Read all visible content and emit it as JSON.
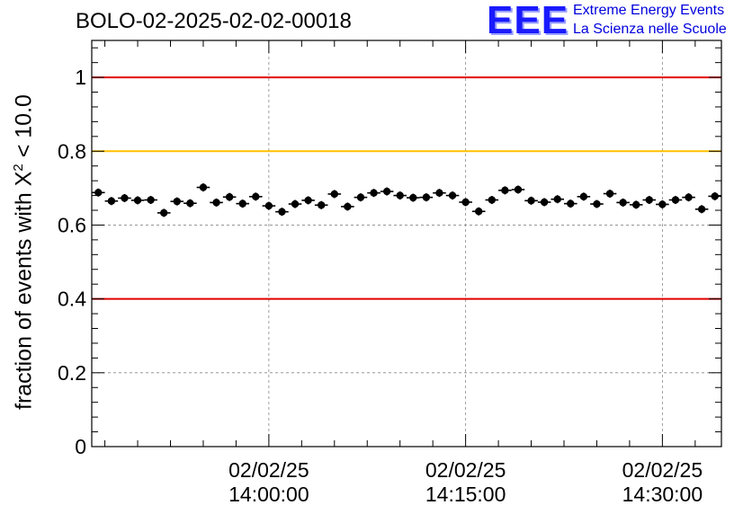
{
  "header": {
    "title": "BOLO-02-2025-02-02-00018"
  },
  "logo": {
    "mark": "EEE",
    "line1": "Extreme Energy Events",
    "line2": "La Scienza nelle Scuole"
  },
  "colors": {
    "threshold_red": "#e00000",
    "threshold_yellow": "#ffc000",
    "points": "#000000",
    "grid": "#888888"
  },
  "chart_data": {
    "type": "scatter",
    "ylabel_parts": {
      "prefix": "fraction of events with ",
      "symbol": "X",
      "sup": "2",
      "suffix": " < 10.0"
    },
    "ylim": [
      0,
      1.1
    ],
    "yticks": [
      {
        "value": 0,
        "label": "0"
      },
      {
        "value": 0.2,
        "label": "0.2"
      },
      {
        "value": 0.4,
        "label": "0.4"
      },
      {
        "value": 0.6,
        "label": "0.6"
      },
      {
        "value": 0.8,
        "label": "0.8"
      },
      {
        "value": 1.0,
        "label": "1"
      }
    ],
    "xlim_minutes": [
      -13.5,
      34.5
    ],
    "xticks": [
      {
        "minutes": 0,
        "date": "02/02/25",
        "time": "14:00:00"
      },
      {
        "minutes": 15,
        "date": "02/02/25",
        "time": "14:15:00"
      },
      {
        "minutes": 30,
        "date": "02/02/25",
        "time": "14:30:00"
      }
    ],
    "grid": true,
    "reference_lines": [
      {
        "y": 1.0,
        "color": "red"
      },
      {
        "y": 0.8,
        "color": "yellow"
      },
      {
        "y": 0.4,
        "color": "red"
      }
    ],
    "points": [
      0.688,
      0.665,
      0.673,
      0.667,
      0.668,
      0.633,
      0.664,
      0.659,
      0.702,
      0.661,
      0.676,
      0.658,
      0.677,
      0.652,
      0.636,
      0.657,
      0.667,
      0.654,
      0.684,
      0.65,
      0.675,
      0.687,
      0.691,
      0.68,
      0.674,
      0.675,
      0.687,
      0.68,
      0.662,
      0.637,
      0.668,
      0.694,
      0.696,
      0.666,
      0.662,
      0.67,
      0.658,
      0.677,
      0.657,
      0.685,
      0.661,
      0.655,
      0.668,
      0.656,
      0.668,
      0.675,
      0.643,
      0.678
    ],
    "y_error": 0.011,
    "bin_minutes": 1
  }
}
